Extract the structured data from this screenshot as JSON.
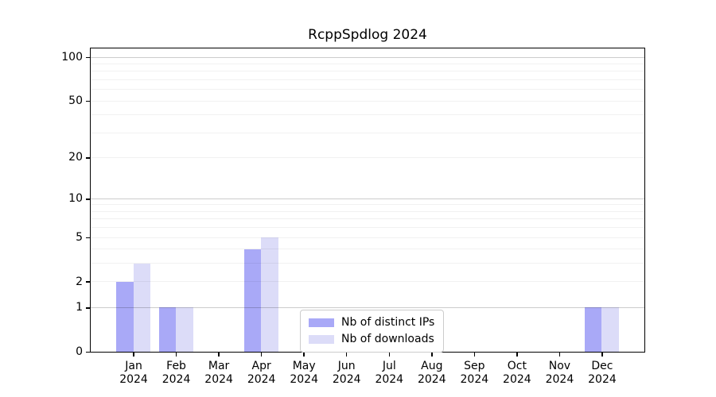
{
  "chart_data": {
    "type": "bar",
    "title": "RcppSpdlog 2024",
    "categories": [
      "Jan",
      "Feb",
      "Mar",
      "Apr",
      "May",
      "Jun",
      "Jul",
      "Aug",
      "Sep",
      "Oct",
      "Nov",
      "Dec"
    ],
    "category_year": "2024",
    "series": [
      {
        "name": "Nb of distinct IPs",
        "color": "#a9a9f7",
        "values": [
          2,
          1,
          0,
          4,
          0,
          0,
          0,
          0,
          0,
          0,
          0,
          1
        ]
      },
      {
        "name": "Nb of downloads",
        "color": "#dcdcf8",
        "values": [
          3,
          1,
          0,
          5,
          0,
          0,
          0,
          0,
          0,
          0,
          0,
          1
        ]
      }
    ],
    "y_axis": {
      "scale": "log1p",
      "max": 115,
      "tick_values": [
        0,
        1,
        2,
        5,
        10,
        20,
        50,
        100
      ],
      "grid_major": [
        1,
        10,
        100
      ],
      "grid_minor": [
        2,
        3,
        4,
        5,
        6,
        7,
        8,
        9,
        20,
        30,
        40,
        50,
        60,
        70,
        80,
        90
      ]
    },
    "legend_position": "lower center",
    "grid": "horizontal",
    "background": "#ffffff"
  }
}
